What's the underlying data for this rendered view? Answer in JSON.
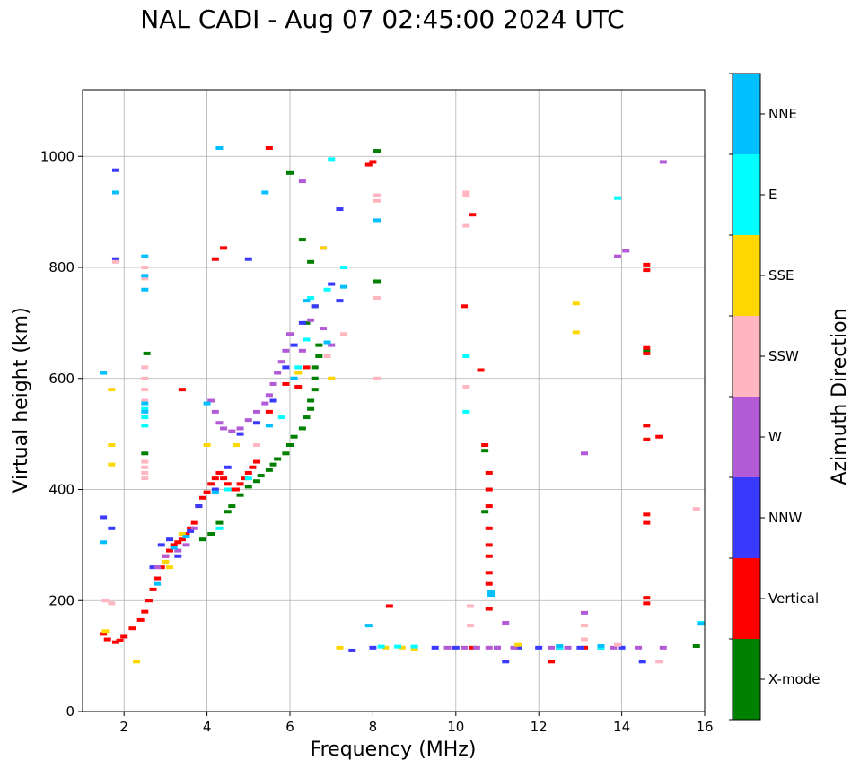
{
  "chart_data": {
    "type": "scatter",
    "title": "NAL CADI - Aug 07 02:45:00 2024 UTC",
    "xlabel": "Frequency (MHz)",
    "ylabel": "Virtual height (km)",
    "xlim": [
      1,
      16
    ],
    "ylim": [
      0,
      1120
    ],
    "x_ticks": [
      2,
      4,
      6,
      8,
      10,
      12,
      14,
      16
    ],
    "y_ticks": [
      0,
      200,
      400,
      600,
      800,
      1000
    ],
    "grid": true,
    "colorbar": {
      "label": "Azimuth Direction",
      "categories": [
        "X-mode",
        "Vertical",
        "NNW",
        "W",
        "SSW",
        "SSE",
        "E",
        "NNE"
      ],
      "colors": [
        "#008000",
        "#ff0000",
        "#3a3aff",
        "#b35ad6",
        "#ffb6c1",
        "#ffd700",
        "#00ffff",
        "#00bfff"
      ]
    },
    "series": [
      {
        "name": "X-mode",
        "points": [
          [
            3.9,
            310
          ],
          [
            4.1,
            320
          ],
          [
            4.3,
            340
          ],
          [
            4.5,
            360
          ],
          [
            4.6,
            370
          ],
          [
            4.8,
            390
          ],
          [
            5.0,
            405
          ],
          [
            5.2,
            415
          ],
          [
            5.3,
            425
          ],
          [
            5.5,
            435
          ],
          [
            5.6,
            445
          ],
          [
            5.7,
            455
          ],
          [
            5.9,
            465
          ],
          [
            6.0,
            480
          ],
          [
            6.1,
            495
          ],
          [
            6.3,
            510
          ],
          [
            6.4,
            530
          ],
          [
            6.5,
            545
          ],
          [
            6.5,
            560
          ],
          [
            6.6,
            580
          ],
          [
            6.6,
            600
          ],
          [
            6.6,
            620
          ],
          [
            6.7,
            640
          ],
          [
            6.7,
            660
          ],
          [
            6.4,
            700
          ],
          [
            6.6,
            730
          ],
          [
            6.5,
            810
          ],
          [
            6.3,
            850
          ],
          [
            6.0,
            970
          ],
          [
            10.7,
            360
          ],
          [
            10.7,
            470
          ],
          [
            14.6,
            650
          ],
          [
            15.8,
            118
          ],
          [
            8.1,
            1010
          ],
          [
            8.1,
            775
          ],
          [
            2.55,
            645
          ],
          [
            2.5,
            465
          ]
        ]
      },
      {
        "name": "Vertical",
        "points": [
          [
            1.5,
            140
          ],
          [
            1.6,
            130
          ],
          [
            1.8,
            125
          ],
          [
            1.9,
            128
          ],
          [
            2.0,
            135
          ],
          [
            2.2,
            150
          ],
          [
            2.4,
            165
          ],
          [
            2.5,
            180
          ],
          [
            2.6,
            200
          ],
          [
            2.7,
            220
          ],
          [
            2.8,
            240
          ],
          [
            2.9,
            260
          ],
          [
            3.0,
            280
          ],
          [
            3.1,
            290
          ],
          [
            3.2,
            300
          ],
          [
            3.3,
            305
          ],
          [
            3.4,
            310
          ],
          [
            3.5,
            320
          ],
          [
            3.6,
            330
          ],
          [
            3.7,
            340
          ],
          [
            3.8,
            370
          ],
          [
            3.9,
            385
          ],
          [
            4.0,
            395
          ],
          [
            4.1,
            410
          ],
          [
            4.2,
            420
          ],
          [
            4.3,
            430
          ],
          [
            4.4,
            420
          ],
          [
            4.5,
            410
          ],
          [
            4.6,
            400
          ],
          [
            4.7,
            400
          ],
          [
            4.8,
            410
          ],
          [
            4.9,
            420
          ],
          [
            5.0,
            430
          ],
          [
            5.1,
            440
          ],
          [
            5.2,
            450
          ],
          [
            5.5,
            540
          ],
          [
            5.6,
            560
          ],
          [
            5.9,
            590
          ],
          [
            6.2,
            585
          ],
          [
            6.4,
            620
          ],
          [
            10.8,
            430
          ],
          [
            10.8,
            400
          ],
          [
            10.8,
            370
          ],
          [
            10.8,
            330
          ],
          [
            10.8,
            300
          ],
          [
            10.8,
            280
          ],
          [
            10.8,
            250
          ],
          [
            10.8,
            230
          ],
          [
            10.8,
            185
          ],
          [
            10.7,
            480
          ],
          [
            10.6,
            615
          ],
          [
            10.4,
            895
          ],
          [
            10.2,
            730
          ],
          [
            14.6,
            805
          ],
          [
            14.6,
            795
          ],
          [
            14.6,
            655
          ],
          [
            14.6,
            645
          ],
          [
            14.6,
            515
          ],
          [
            14.6,
            490
          ],
          [
            14.6,
            355
          ],
          [
            14.6,
            340
          ],
          [
            14.6,
            205
          ],
          [
            14.6,
            195
          ],
          [
            14.9,
            495
          ],
          [
            8.4,
            190
          ],
          [
            8.0,
            990
          ],
          [
            7.9,
            985
          ],
          [
            5.5,
            1015
          ],
          [
            4.4,
            835
          ],
          [
            4.2,
            815
          ],
          [
            3.4,
            580
          ],
          [
            12.3,
            90
          ],
          [
            10.4,
            115
          ],
          [
            13.1,
            115
          ]
        ]
      },
      {
        "name": "NNW",
        "points": [
          [
            1.5,
            350
          ],
          [
            1.7,
            330
          ],
          [
            2.7,
            260
          ],
          [
            2.9,
            300
          ],
          [
            3.1,
            310
          ],
          [
            3.3,
            280
          ],
          [
            3.6,
            325
          ],
          [
            3.8,
            370
          ],
          [
            4.2,
            400
          ],
          [
            4.5,
            440
          ],
          [
            4.8,
            500
          ],
          [
            5.2,
            520
          ],
          [
            5.6,
            560
          ],
          [
            5.9,
            620
          ],
          [
            6.1,
            660
          ],
          [
            6.3,
            700
          ],
          [
            6.6,
            730
          ],
          [
            7.0,
            770
          ],
          [
            7.2,
            740
          ],
          [
            7.5,
            110
          ],
          [
            8.0,
            115
          ],
          [
            9.0,
            115
          ],
          [
            9.5,
            115
          ],
          [
            10.0,
            115
          ],
          [
            11.0,
            115
          ],
          [
            11.5,
            115
          ],
          [
            12.0,
            115
          ],
          [
            12.5,
            115
          ],
          [
            13.0,
            115
          ],
          [
            13.5,
            115
          ],
          [
            14.0,
            115
          ],
          [
            11.2,
            90
          ],
          [
            14.5,
            90
          ],
          [
            6.8,
            835
          ],
          [
            7.2,
            905
          ],
          [
            5.0,
            815
          ],
          [
            1.8,
            975
          ],
          [
            1.8,
            815
          ]
        ]
      },
      {
        "name": "W",
        "points": [
          [
            2.8,
            260
          ],
          [
            3.0,
            280
          ],
          [
            3.3,
            290
          ],
          [
            3.5,
            300
          ],
          [
            3.7,
            330
          ],
          [
            4.1,
            560
          ],
          [
            4.2,
            540
          ],
          [
            4.3,
            520
          ],
          [
            4.4,
            510
          ],
          [
            4.6,
            505
          ],
          [
            4.8,
            510
          ],
          [
            5.0,
            525
          ],
          [
            5.2,
            540
          ],
          [
            5.4,
            555
          ],
          [
            5.5,
            570
          ],
          [
            5.6,
            590
          ],
          [
            5.7,
            610
          ],
          [
            5.8,
            630
          ],
          [
            5.9,
            650
          ],
          [
            6.0,
            680
          ],
          [
            6.3,
            650
          ],
          [
            6.5,
            705
          ],
          [
            6.8,
            690
          ],
          [
            7.0,
            660
          ],
          [
            9.8,
            115
          ],
          [
            10.2,
            115
          ],
          [
            10.5,
            115
          ],
          [
            10.8,
            115
          ],
          [
            11.0,
            115
          ],
          [
            11.4,
            115
          ],
          [
            12.3,
            115
          ],
          [
            12.7,
            115
          ],
          [
            13.8,
            115
          ],
          [
            14.4,
            115
          ],
          [
            15.0,
            115
          ],
          [
            13.1,
            465
          ],
          [
            13.1,
            178
          ],
          [
            14.1,
            830
          ],
          [
            13.9,
            820
          ],
          [
            15.0,
            990
          ],
          [
            6.3,
            955
          ],
          [
            11.2,
            160
          ]
        ]
      },
      {
        "name": "SSW",
        "points": [
          [
            1.55,
            200
          ],
          [
            1.7,
            195
          ],
          [
            2.5,
            620
          ],
          [
            2.5,
            600
          ],
          [
            2.5,
            580
          ],
          [
            2.5,
            560
          ],
          [
            2.5,
            450
          ],
          [
            2.5,
            440
          ],
          [
            2.5,
            430
          ],
          [
            2.5,
            420
          ],
          [
            2.5,
            800
          ],
          [
            2.5,
            780
          ],
          [
            1.8,
            810
          ],
          [
            8.1,
            930
          ],
          [
            8.1,
            920
          ],
          [
            8.1,
            745
          ],
          [
            8.1,
            600
          ],
          [
            10.25,
            935
          ],
          [
            10.25,
            930
          ],
          [
            10.25,
            875
          ],
          [
            10.25,
            640
          ],
          [
            10.25,
            585
          ],
          [
            10.35,
            190
          ],
          [
            10.35,
            155
          ],
          [
            13.1,
            155
          ],
          [
            13.1,
            130
          ],
          [
            13.9,
            120
          ],
          [
            14.9,
            90
          ],
          [
            15.8,
            365
          ],
          [
            7.3,
            680
          ],
          [
            6.9,
            640
          ],
          [
            5.2,
            480
          ]
        ]
      },
      {
        "name": "SSE",
        "points": [
          [
            1.55,
            145
          ],
          [
            1.7,
            580
          ],
          [
            1.7,
            480
          ],
          [
            1.7,
            445
          ],
          [
            2.3,
            90
          ],
          [
            3.0,
            270
          ],
          [
            3.1,
            260
          ],
          [
            3.4,
            320
          ],
          [
            4.0,
            480
          ],
          [
            4.7,
            480
          ],
          [
            6.2,
            610
          ],
          [
            7.2,
            115
          ],
          [
            8.3,
            115
          ],
          [
            8.7,
            115
          ],
          [
            9.0,
            112
          ],
          [
            11.5,
            120
          ],
          [
            12.9,
            735
          ],
          [
            12.9,
            683
          ],
          [
            6.8,
            835
          ],
          [
            7.0,
            600
          ]
        ]
      },
      {
        "name": "E",
        "points": [
          [
            2.5,
            545
          ],
          [
            2.5,
            530
          ],
          [
            2.5,
            515
          ],
          [
            4.3,
            330
          ],
          [
            4.5,
            400
          ],
          [
            5.0,
            420
          ],
          [
            5.8,
            530
          ],
          [
            6.2,
            620
          ],
          [
            6.4,
            670
          ],
          [
            6.5,
            745
          ],
          [
            6.9,
            760
          ],
          [
            7.3,
            800
          ],
          [
            7.0,
            995
          ],
          [
            8.2,
            117
          ],
          [
            8.6,
            117
          ],
          [
            9.0,
            117
          ],
          [
            10.25,
            640
          ],
          [
            10.25,
            540
          ],
          [
            12.5,
            115
          ],
          [
            13.5,
            115
          ],
          [
            13.9,
            925
          ],
          [
            15.9,
            160
          ]
        ]
      },
      {
        "name": "NNE",
        "points": [
          [
            1.5,
            610
          ],
          [
            1.5,
            305
          ],
          [
            1.8,
            935
          ],
          [
            2.5,
            820
          ],
          [
            2.5,
            785
          ],
          [
            2.5,
            760
          ],
          [
            2.5,
            555
          ],
          [
            2.5,
            540
          ],
          [
            2.8,
            230
          ],
          [
            3.2,
            295
          ],
          [
            3.5,
            315
          ],
          [
            4.0,
            555
          ],
          [
            4.2,
            395
          ],
          [
            5.5,
            515
          ],
          [
            6.1,
            600
          ],
          [
            6.4,
            740
          ],
          [
            6.9,
            665
          ],
          [
            7.3,
            765
          ],
          [
            7.9,
            155
          ],
          [
            8.1,
            885
          ],
          [
            10.85,
            215
          ],
          [
            10.85,
            210
          ],
          [
            12.5,
            118
          ],
          [
            13.5,
            118
          ],
          [
            15.9,
            158
          ],
          [
            5.4,
            935
          ],
          [
            4.3,
            1015
          ]
        ]
      }
    ]
  }
}
